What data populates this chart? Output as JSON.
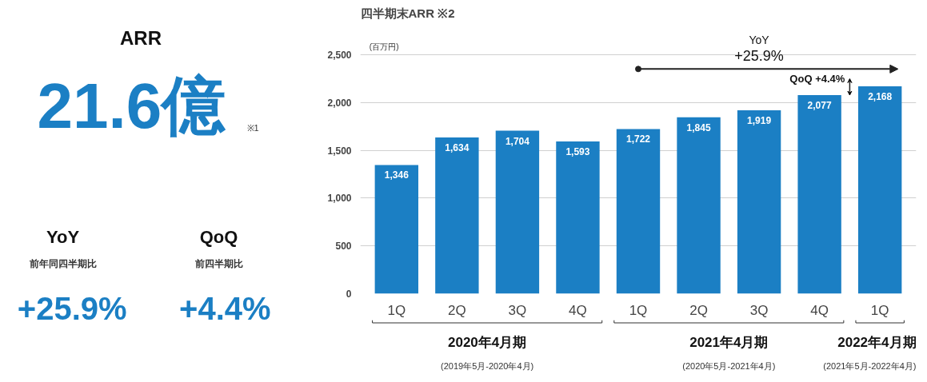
{
  "chart_data": [
    {
      "type": "other",
      "title": "ARR",
      "annotations": [
        "21.6億",
        "※1",
        "YoY",
        "前年同四半期比",
        "+25.9%",
        "QoQ",
        "前四半期比",
        "+4.4%"
      ]
    },
    {
      "type": "bar",
      "title": "四半期末ARR ※2",
      "ylabel": "(百万円)",
      "categories": [
        "1Q",
        "2Q",
        "3Q",
        "4Q",
        "1Q",
        "2Q",
        "3Q",
        "4Q",
        "1Q"
      ],
      "values": [
        1346,
        1634,
        1704,
        1593,
        1722,
        1845,
        1919,
        2077,
        2168
      ],
      "color": "#1b7fc4",
      "ylim": [
        0,
        2500
      ],
      "yticks": [
        0,
        {
          "value": 500,
          "label": "500"
        },
        {
          "value": 1000,
          "label": "1,000"
        },
        {
          "value": 1500,
          "label": "1,500"
        },
        {
          "value": 2000,
          "label": "2,000"
        },
        {
          "value": 2500,
          "label": "2,500"
        }
      ],
      "grid": "y",
      "value_labels": [
        "1,346",
        "1,634",
        "1,704",
        "1,593",
        "1,722",
        "1,845",
        "1,919",
        "2,077",
        "2,168"
      ],
      "annotations": [
        "YoY",
        "+25.9%",
        "QoQ +4.4%",
        "2020年4月期",
        "(2019年5月-2020年4月)",
        "2021年4月期",
        "(2020年5月-2021年4月)",
        "2022年4月期",
        "(2021年5月-2022年4月)"
      ]
    }
  ]
}
